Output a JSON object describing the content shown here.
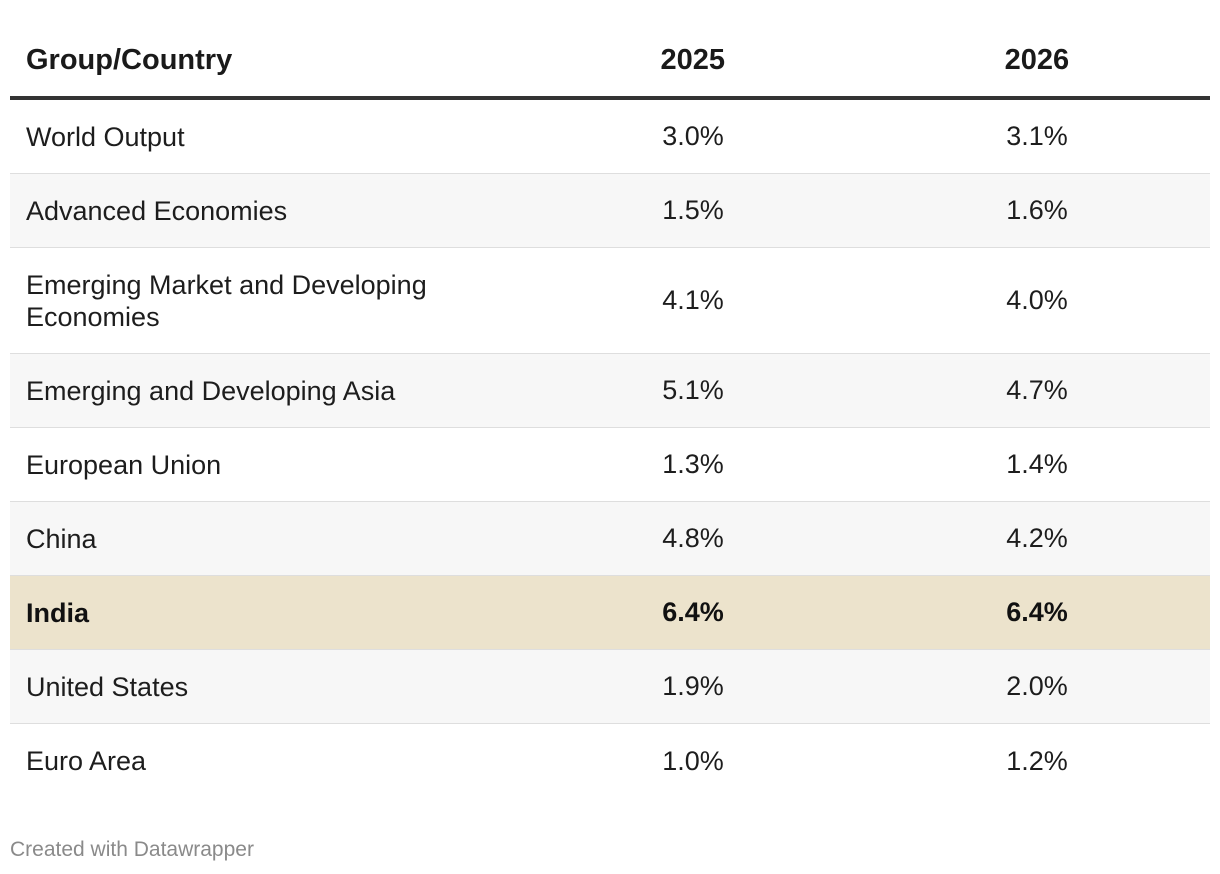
{
  "chart_data": {
    "type": "table",
    "columns": [
      "Group/Country",
      "2025",
      "2026"
    ],
    "rows": [
      {
        "name": "World Output",
        "v2025": "3.0%",
        "v2026": "3.1%"
      },
      {
        "name": "Advanced Economies",
        "v2025": "1.5%",
        "v2026": "1.6%"
      },
      {
        "name": "Emerging Market and Developing Economies",
        "v2025": "4.1%",
        "v2026": "4.0%"
      },
      {
        "name": "Emerging and Developing Asia",
        "v2025": "5.1%",
        "v2026": "4.7%"
      },
      {
        "name": "European Union",
        "v2025": "1.3%",
        "v2026": "1.4%"
      },
      {
        "name": "China",
        "v2025": "4.8%",
        "v2026": "4.2%"
      },
      {
        "name": "India",
        "v2025": "6.4%",
        "v2026": "6.4%"
      },
      {
        "name": "United States",
        "v2025": "1.9%",
        "v2026": "2.0%"
      },
      {
        "name": "Euro Area",
        "v2025": "1.0%",
        "v2026": "1.2%"
      }
    ],
    "highlight_row": "India",
    "highlight_color": "#ece3cc",
    "credit": "Created with Datawrapper"
  }
}
